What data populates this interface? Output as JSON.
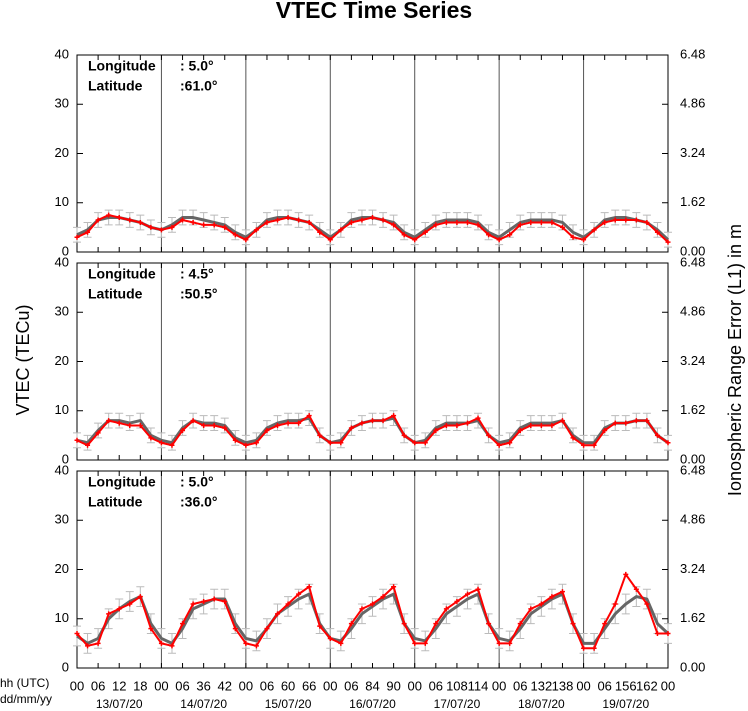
{
  "title": "VTEC Time Series",
  "ylabel": "VTEC (TECu)",
  "y2label": "Ionospheric Range Error (L1) in m",
  "xlabel_hours": "hh (UTC)",
  "xlabel_dates": "dd/mm/yy",
  "chart_data": [
    {
      "type": "line",
      "annotation": [
        "Longitude",
        ":  5.0°",
        "Latitude",
        ":61.0°"
      ],
      "xlim": [
        0,
        168
      ],
      "ylim": [
        0,
        40
      ],
      "yticks": [
        0,
        10,
        20,
        30,
        40
      ],
      "y2lim": [
        0,
        6.48
      ],
      "y2ticks": [
        {
          "value": 0,
          "label": "0.00"
        },
        1.62,
        3.24,
        4.86,
        6.48
      ],
      "xticks": [
        {
          "value": 0,
          "label": "00"
        },
        {
          "value": 6,
          "label": "06"
        },
        12,
        18,
        {
          "value": 24,
          "label": "00"
        },
        {
          "value": 30,
          "label": "06"
        },
        36,
        42,
        {
          "value": 48,
          "label": "00"
        },
        {
          "value": 54,
          "label": "06"
        },
        60,
        66,
        {
          "value": 72,
          "label": "00"
        },
        {
          "value": 78,
          "label": "06"
        },
        84,
        90,
        {
          "value": 96,
          "label": "00"
        },
        {
          "value": 102,
          "label": "06"
        },
        108,
        114,
        {
          "value": 120,
          "label": "00"
        },
        {
          "value": 126,
          "label": "06"
        },
        132,
        138,
        {
          "value": 144,
          "label": "00"
        },
        {
          "value": 150,
          "label": "06"
        },
        156,
        162,
        {
          "value": 168,
          "label": "00"
        }
      ],
      "day_lines": [
        24,
        48,
        72,
        96,
        120,
        144
      ],
      "x": [
        0,
        3,
        6,
        9,
        12,
        15,
        18,
        21,
        24,
        27,
        30,
        33,
        36,
        39,
        42,
        45,
        48,
        51,
        54,
        57,
        60,
        63,
        66,
        69,
        72,
        75,
        78,
        81,
        84,
        87,
        90,
        93,
        96,
        99,
        102,
        105,
        108,
        111,
        114,
        117,
        120,
        123,
        126,
        129,
        132,
        135,
        138,
        141,
        144,
        147,
        150,
        153,
        156,
        159,
        162,
        165,
        168
      ],
      "series": [
        {
          "color": "#666666",
          "error": 1.5,
          "errcolor": "#bbbbbb",
          "values": [
            3.5,
            4.5,
            6.5,
            7,
            7,
            6.5,
            6,
            5,
            4.5,
            5.5,
            7,
            7,
            6.5,
            6,
            5.5,
            4,
            3,
            4.5,
            6.5,
            7,
            7,
            6.5,
            6,
            4.5,
            3,
            4.5,
            6.5,
            7,
            7,
            6.5,
            6,
            4,
            3,
            4.5,
            6,
            6.5,
            6.5,
            6.5,
            6,
            4,
            3,
            4.5,
            6,
            6.5,
            6.5,
            6.5,
            6,
            4,
            3,
            4.5,
            6.5,
            7,
            7,
            6.5,
            6,
            4.5,
            2.5
          ]
        },
        {
          "color": "#ff0000",
          "values": [
            3,
            4,
            6.5,
            7.5,
            7,
            6.5,
            6,
            5,
            4.5,
            5,
            6.5,
            6,
            5.5,
            5.5,
            5,
            3.5,
            2.5,
            4.5,
            6,
            6.5,
            7,
            6.5,
            6,
            4,
            2.5,
            4.5,
            6,
            6.5,
            7,
            6.5,
            5.5,
            3.5,
            2.5,
            4,
            5.5,
            6,
            6,
            6,
            5.5,
            3.5,
            2.5,
            3.5,
            5.5,
            6,
            6,
            6,
            5,
            3,
            2.5,
            4.5,
            6,
            6.5,
            6.5,
            6.5,
            6,
            4,
            2
          ]
        }
      ]
    },
    {
      "type": "line",
      "annotation": [
        "Longitude",
        ":  4.5°",
        "Latitude",
        ":50.5°"
      ],
      "xlim": [
        0,
        168
      ],
      "ylim": [
        0,
        40
      ],
      "yticks": [
        0,
        10,
        20,
        30,
        40
      ],
      "y2lim": [
        0,
        6.48
      ],
      "y2ticks": [
        {
          "value": 0,
          "label": "0.00"
        },
        1.62,
        3.24,
        4.86,
        6.48
      ],
      "xticks": [
        {
          "value": 0,
          "label": "00"
        },
        {
          "value": 6,
          "label": "06"
        },
        12,
        18,
        {
          "value": 24,
          "label": "00"
        },
        {
          "value": 30,
          "label": "06"
        },
        36,
        42,
        {
          "value": 48,
          "label": "00"
        },
        {
          "value": 54,
          "label": "06"
        },
        60,
        66,
        {
          "value": 72,
          "label": "00"
        },
        {
          "value": 78,
          "label": "06"
        },
        84,
        90,
        {
          "value": 96,
          "label": "00"
        },
        {
          "value": 102,
          "label": "06"
        },
        108,
        114,
        {
          "value": 120,
          "label": "00"
        },
        {
          "value": 126,
          "label": "06"
        },
        132,
        138,
        {
          "value": 144,
          "label": "00"
        },
        {
          "value": 150,
          "label": "06"
        },
        156,
        162,
        {
          "value": 168,
          "label": "00"
        }
      ],
      "day_lines": [
        24,
        48,
        72,
        96,
        120,
        144
      ],
      "x": [
        0,
        3,
        6,
        9,
        12,
        15,
        18,
        21,
        24,
        27,
        30,
        33,
        36,
        39,
        42,
        45,
        48,
        51,
        54,
        57,
        60,
        63,
        66,
        69,
        72,
        75,
        78,
        81,
        84,
        87,
        90,
        93,
        96,
        99,
        102,
        105,
        108,
        111,
        114,
        117,
        120,
        123,
        126,
        129,
        132,
        135,
        138,
        141,
        144,
        147,
        150,
        153,
        156,
        159,
        162,
        165,
        168
      ],
      "series": [
        {
          "color": "#666666",
          "error": 1.5,
          "errcolor": "#bbbbbb",
          "values": [
            4,
            3.5,
            6,
            8,
            8,
            7.5,
            8,
            5,
            4,
            3.5,
            6.5,
            8,
            7.5,
            7.5,
            7,
            4.5,
            3.5,
            4,
            6.5,
            7.5,
            8,
            8,
            8.5,
            5,
            3.5,
            4,
            6.5,
            7.5,
            8,
            8,
            8.5,
            5,
            3.5,
            4,
            6.5,
            7.5,
            7.5,
            7.5,
            8,
            5,
            3.5,
            4,
            6.5,
            7.5,
            7.5,
            7.5,
            8,
            5,
            3.5,
            3.5,
            6.5,
            7.5,
            7.5,
            8,
            8,
            5,
            3.5
          ]
        },
        {
          "color": "#ff0000",
          "values": [
            4,
            3,
            5.5,
            8,
            7.5,
            7,
            7,
            4.5,
            3.5,
            3,
            6,
            8,
            7,
            7,
            6.5,
            4,
            3,
            3.5,
            6,
            7,
            7.5,
            7.5,
            9,
            5,
            3.5,
            3.5,
            6.5,
            7.5,
            8,
            8,
            9,
            5,
            3.5,
            3.5,
            6,
            7,
            7,
            7.5,
            8.5,
            5,
            3,
            3.5,
            6,
            7,
            7,
            7,
            8,
            4.5,
            3,
            3,
            6,
            7.5,
            7.5,
            8,
            8,
            5,
            3.5
          ]
        }
      ]
    },
    {
      "type": "line",
      "annotation": [
        "Longitude",
        ":  5.0°",
        "Latitude",
        ":36.0°"
      ],
      "xlim": [
        0,
        168
      ],
      "ylim": [
        0,
        40
      ],
      "yticks": [
        0,
        10,
        20,
        30,
        40
      ],
      "y2lim": [
        0,
        6.48
      ],
      "y2ticks": [
        {
          "value": 0,
          "label": "0.00"
        },
        1.62,
        3.24,
        4.86,
        6.48
      ],
      "xticks": [
        {
          "value": 0,
          "label": "00"
        },
        {
          "value": 6,
          "label": "06"
        },
        12,
        18,
        {
          "value": 24,
          "label": "00"
        },
        {
          "value": 30,
          "label": "06"
        },
        36,
        42,
        {
          "value": 48,
          "label": "00"
        },
        {
          "value": 54,
          "label": "06"
        },
        60,
        66,
        {
          "value": 72,
          "label": "00"
        },
        {
          "value": 78,
          "label": "06"
        },
        84,
        90,
        {
          "value": 96,
          "label": "00"
        },
        {
          "value": 102,
          "label": "06"
        },
        108,
        114,
        {
          "value": 120,
          "label": "00"
        },
        {
          "value": 126,
          "label": "06"
        },
        132,
        138,
        {
          "value": 144,
          "label": "00"
        },
        {
          "value": 150,
          "label": "06"
        },
        156,
        162,
        {
          "value": 168,
          "label": "00"
        }
      ],
      "day_lines": [
        24,
        48,
        72,
        96,
        120,
        144
      ],
      "days": [
        "13/07/20",
        "14/07/20",
        "15/07/20",
        "16/07/20",
        "17/07/20",
        "18/07/20",
        "19/07/20"
      ],
      "x": [
        0,
        3,
        6,
        9,
        12,
        15,
        18,
        21,
        24,
        27,
        30,
        33,
        36,
        39,
        42,
        45,
        48,
        51,
        54,
        57,
        60,
        63,
        66,
        69,
        72,
        75,
        78,
        81,
        84,
        87,
        90,
        93,
        96,
        99,
        102,
        105,
        108,
        111,
        114,
        117,
        120,
        123,
        126,
        129,
        132,
        135,
        138,
        141,
        144,
        147,
        150,
        153,
        156,
        159,
        162,
        165,
        168
      ],
      "series": [
        {
          "color": "#666666",
          "error": 2,
          "errcolor": "#bbbbbb",
          "values": [
            6.5,
            5,
            6,
            10,
            12,
            13.5,
            14.5,
            9,
            6,
            5,
            8,
            12,
            13,
            14,
            14,
            9,
            6,
            5.5,
            8,
            11,
            12.5,
            14,
            15,
            9,
            6,
            5.5,
            8,
            11,
            12.5,
            14,
            15,
            9,
            6,
            5.5,
            8,
            11,
            12.5,
            14,
            15,
            9,
            6,
            5.5,
            8,
            11,
            12.5,
            14,
            15,
            9,
            5,
            5,
            8,
            11,
            13,
            14.5,
            14,
            9,
            7
          ]
        },
        {
          "color": "#ff0000",
          "values": [
            7,
            4.5,
            5,
            11,
            12,
            13,
            14.5,
            8,
            5,
            4.5,
            9,
            13,
            13.5,
            14,
            13.5,
            8,
            5,
            4.5,
            8,
            11,
            13,
            15,
            16.5,
            8.5,
            6,
            5,
            9,
            12,
            13,
            14.5,
            16.5,
            9,
            5,
            5,
            9,
            12,
            13.5,
            15,
            16,
            9,
            5,
            5,
            9,
            12,
            13,
            14.5,
            15.5,
            9,
            4,
            4,
            9,
            13,
            19,
            16,
            13,
            7,
            7
          ]
        }
      ]
    }
  ]
}
